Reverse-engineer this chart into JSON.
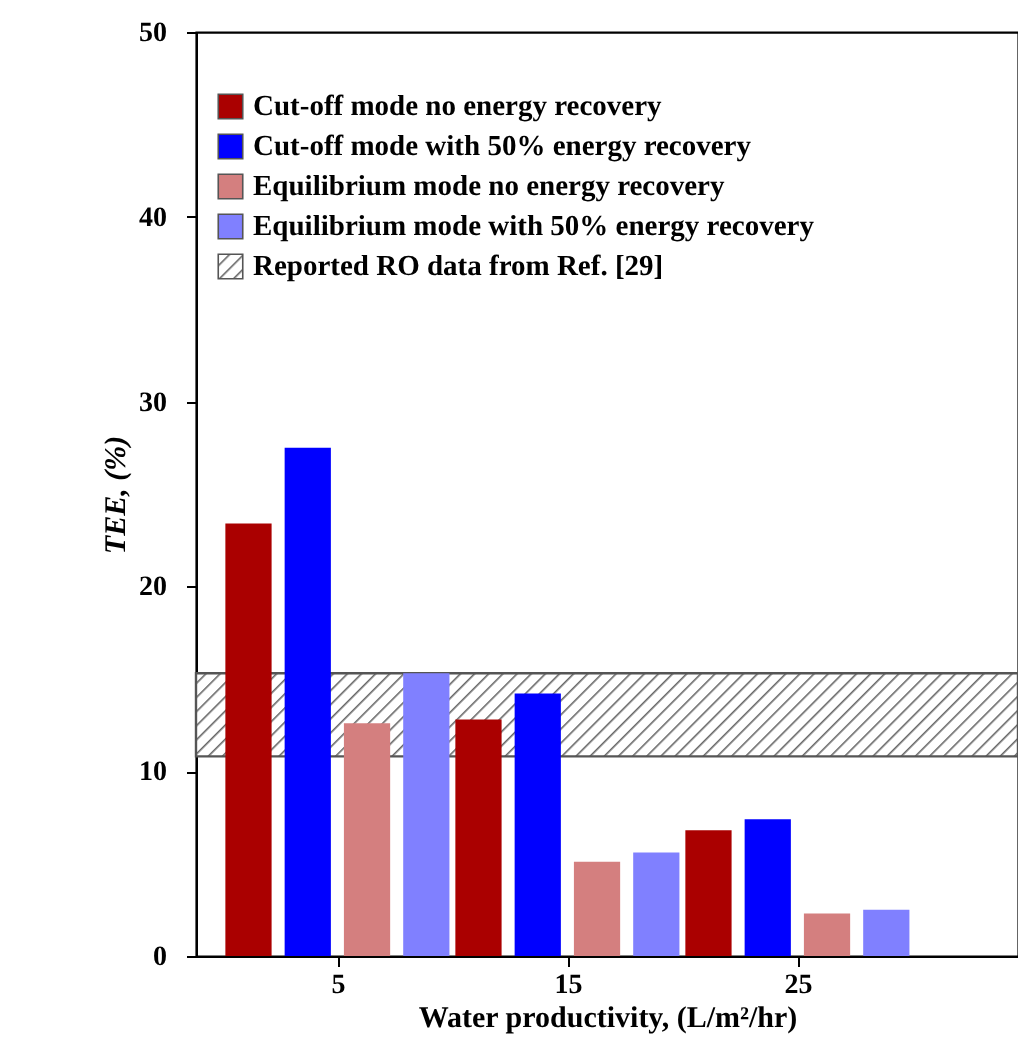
{
  "chart_data": {
    "type": "bar",
    "xlabel": "Water productivity, (L/m²/hr)",
    "ylabel": "TEE, (%)",
    "categories": [
      "5",
      "15",
      "25"
    ],
    "series": [
      {
        "name": "Cut-off mode no energy recovery",
        "color": "#aa0000",
        "values": [
          23.4,
          12.8,
          6.8
        ]
      },
      {
        "name": "Cut-off mode with 50% energy recovery",
        "color": "#0000ff",
        "values": [
          27.5,
          14.2,
          7.4
        ]
      },
      {
        "name": "Equilibrium mode no energy recovery",
        "color": "#d47f7f",
        "values": [
          12.6,
          5.1,
          2.3
        ]
      },
      {
        "name": "Equilibrium mode with 50% energy recovery",
        "color": "#8080ff",
        "values": [
          15.3,
          5.6,
          2.5
        ]
      }
    ],
    "bands": [
      {
        "axis": "y",
        "from": 10.8,
        "to": 15.3,
        "label": "Reported RO data from Ref. [29]"
      }
    ],
    "ylim": [
      0,
      50
    ],
    "yticks": [
      0,
      10,
      20,
      30,
      40,
      50
    ],
    "legend": "top left",
    "grid": false
  }
}
